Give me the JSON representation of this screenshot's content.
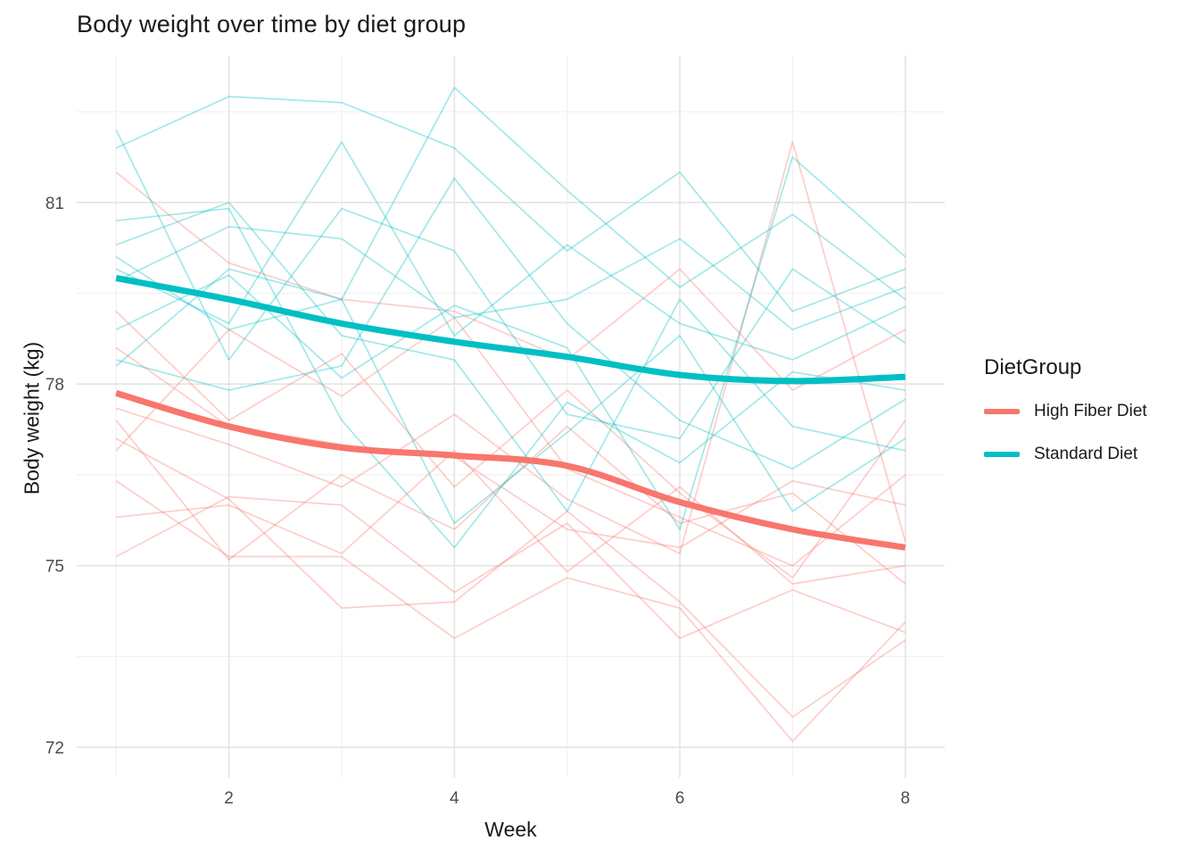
{
  "chart_data": {
    "type": "line",
    "title": "Body weight over time by diet group",
    "xlabel": "Week",
    "ylabel": "Body weight (kg)",
    "x": [
      1,
      2,
      3,
      4,
      5,
      6,
      7,
      8
    ],
    "x_ticks": [
      2,
      4,
      6,
      8
    ],
    "x_minor_ticks": [
      1,
      3,
      5,
      7
    ],
    "y_ticks": [
      72,
      75,
      78,
      81
    ],
    "y_minor_ticks": [
      73.5,
      76.5,
      79.5,
      82.5
    ],
    "xlim": [
      0.65,
      8.35
    ],
    "ylim": [
      71.5,
      83.43
    ],
    "grid": "major+minor",
    "colors": {
      "high_fiber": "#F8766D",
      "standard": "#00BFC4",
      "grid_major": "#E4E4E4",
      "grid_minor": "#F1F1F1",
      "tick_text": "#4d4d4d"
    },
    "legend": {
      "title": "DietGroup",
      "position": "right",
      "entries": [
        {
          "label": "High Fiber Diet",
          "color": "#F8766D"
        },
        {
          "label": "Standard Diet",
          "color": "#00BFC4"
        }
      ]
    },
    "series": [
      {
        "name": "High Fiber Diet (smoothed trend)",
        "role": "smooth",
        "group": "high_fiber",
        "color": "#F8766D",
        "values": [
          77.85,
          77.3,
          76.95,
          76.82,
          76.65,
          76.05,
          75.6,
          75.3
        ]
      },
      {
        "name": "Standard Diet (smoothed trend)",
        "role": "smooth",
        "group": "standard",
        "color": "#00BFC4",
        "values": [
          79.75,
          79.4,
          79.0,
          78.7,
          78.45,
          78.15,
          78.05,
          78.12
        ]
      },
      {
        "name": "High Fiber Diet (individual subjects)",
        "role": "individual",
        "group": "high_fiber",
        "color": "#F8766D",
        "opacity": 0.35,
        "lines": [
          [
            77.6,
            77.0,
            76.3,
            77.5,
            76.1,
            75.2,
            82.0,
            75.4
          ],
          [
            81.5,
            80.0,
            79.4,
            79.2,
            78.4,
            79.9,
            77.9,
            78.9
          ],
          [
            79.2,
            77.4,
            78.5,
            76.3,
            77.9,
            76.2,
            74.8,
            77.4
          ],
          [
            76.4,
            75.15,
            75.15,
            73.8,
            74.8,
            74.3,
            72.1,
            74.07
          ],
          [
            77.1,
            76.1,
            74.3,
            74.4,
            75.9,
            74.4,
            72.5,
            73.77
          ],
          [
            75.15,
            76.14,
            76.0,
            74.56,
            75.7,
            73.8,
            74.6,
            73.9
          ],
          [
            75.8,
            76.0,
            75.2,
            76.9,
            74.9,
            76.3,
            74.7,
            75.0
          ],
          [
            78.6,
            77.3,
            77.0,
            76.8,
            75.6,
            75.3,
            76.4,
            76.0
          ],
          [
            77.4,
            75.1,
            76.5,
            75.6,
            77.3,
            75.7,
            76.2,
            74.7
          ],
          [
            76.9,
            78.9,
            77.8,
            79.1,
            76.6,
            75.8,
            75.0,
            76.5
          ]
        ]
      },
      {
        "name": "Standard Diet (individual subjects)",
        "role": "individual",
        "group": "standard",
        "color": "#00BFC4",
        "opacity": 0.35,
        "lines": [
          [
            81.9,
            82.75,
            82.65,
            81.9,
            80.2,
            81.5,
            79.2,
            79.9
          ],
          [
            78.3,
            79.9,
            79.4,
            82.9,
            81.2,
            79.6,
            80.8,
            79.4
          ],
          [
            79.9,
            79.0,
            82.0,
            78.8,
            80.3,
            79.0,
            78.4,
            79.28
          ],
          [
            78.9,
            79.8,
            78.1,
            79.3,
            78.6,
            75.6,
            81.75,
            80.1
          ],
          [
            80.7,
            80.9,
            77.4,
            75.3,
            77.7,
            76.7,
            78.2,
            77.9
          ],
          [
            80.1,
            78.9,
            79.4,
            75.7,
            77.2,
            78.8,
            75.9,
            77.1
          ],
          [
            79.7,
            80.6,
            80.4,
            79.1,
            79.4,
            80.4,
            78.9,
            79.6
          ],
          [
            82.2,
            78.4,
            80.9,
            80.2,
            77.5,
            77.1,
            79.9,
            78.68
          ],
          [
            78.4,
            77.9,
            78.3,
            81.4,
            79.0,
            77.4,
            76.6,
            77.75
          ],
          [
            80.3,
            81.0,
            78.8,
            78.4,
            75.9,
            79.4,
            77.3,
            76.9
          ]
        ]
      }
    ]
  }
}
